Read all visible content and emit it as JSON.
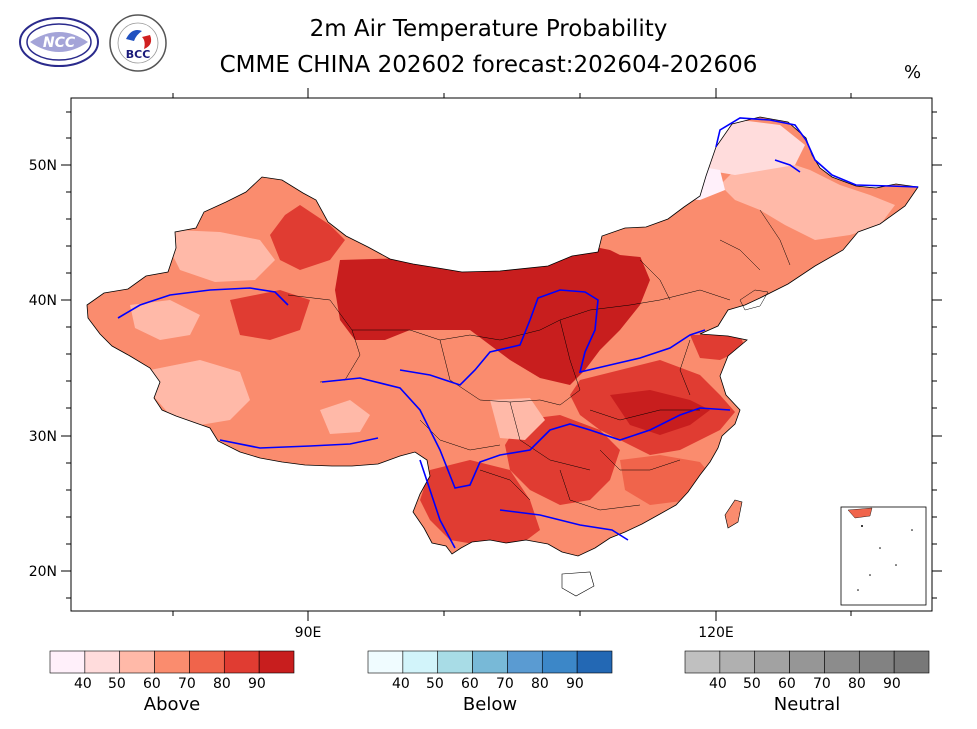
{
  "title_line1": "2m Air Temperature Probability",
  "title_line2": "CMME CHINA 202602 forecast:202604-202606",
  "unit": "%",
  "logos": [
    {
      "name": "ncc-logo",
      "text": "NCC"
    },
    {
      "name": "bcc-logo",
      "text": "BCC"
    }
  ],
  "axes": {
    "lat_labels": [
      "50N",
      "40N",
      "30N",
      "20N"
    ],
    "lon_labels": [
      "90E",
      "120E"
    ]
  },
  "legends": [
    {
      "name": "above",
      "title": "Above",
      "ticks": [
        "40",
        "50",
        "60",
        "70",
        "80",
        "90"
      ],
      "colors": [
        "#fff0fa",
        "#ffdcdc",
        "#ffb9a8",
        "#fa8c6e",
        "#f0644b",
        "#e03c32",
        "#c81e1e"
      ]
    },
    {
      "name": "below",
      "title": "Below",
      "ticks": [
        "40",
        "50",
        "60",
        "70",
        "80",
        "90"
      ],
      "colors": [
        "#f0fcff",
        "#d2f4fa",
        "#a8dce6",
        "#78b9d7",
        "#5a9bd2",
        "#3c87c8",
        "#2368b4"
      ]
    },
    {
      "name": "neutral",
      "title": "Neutral",
      "ticks": [
        "40",
        "50",
        "60",
        "70",
        "80",
        "90"
      ],
      "colors": [
        "#c0c0c0",
        "#b0b0b0",
        "#a2a2a2",
        "#969696",
        "#8c8c8c",
        "#828282",
        "#787878"
      ]
    }
  ],
  "map_colors": {
    "river": "#0000ff",
    "border": "#000000"
  }
}
